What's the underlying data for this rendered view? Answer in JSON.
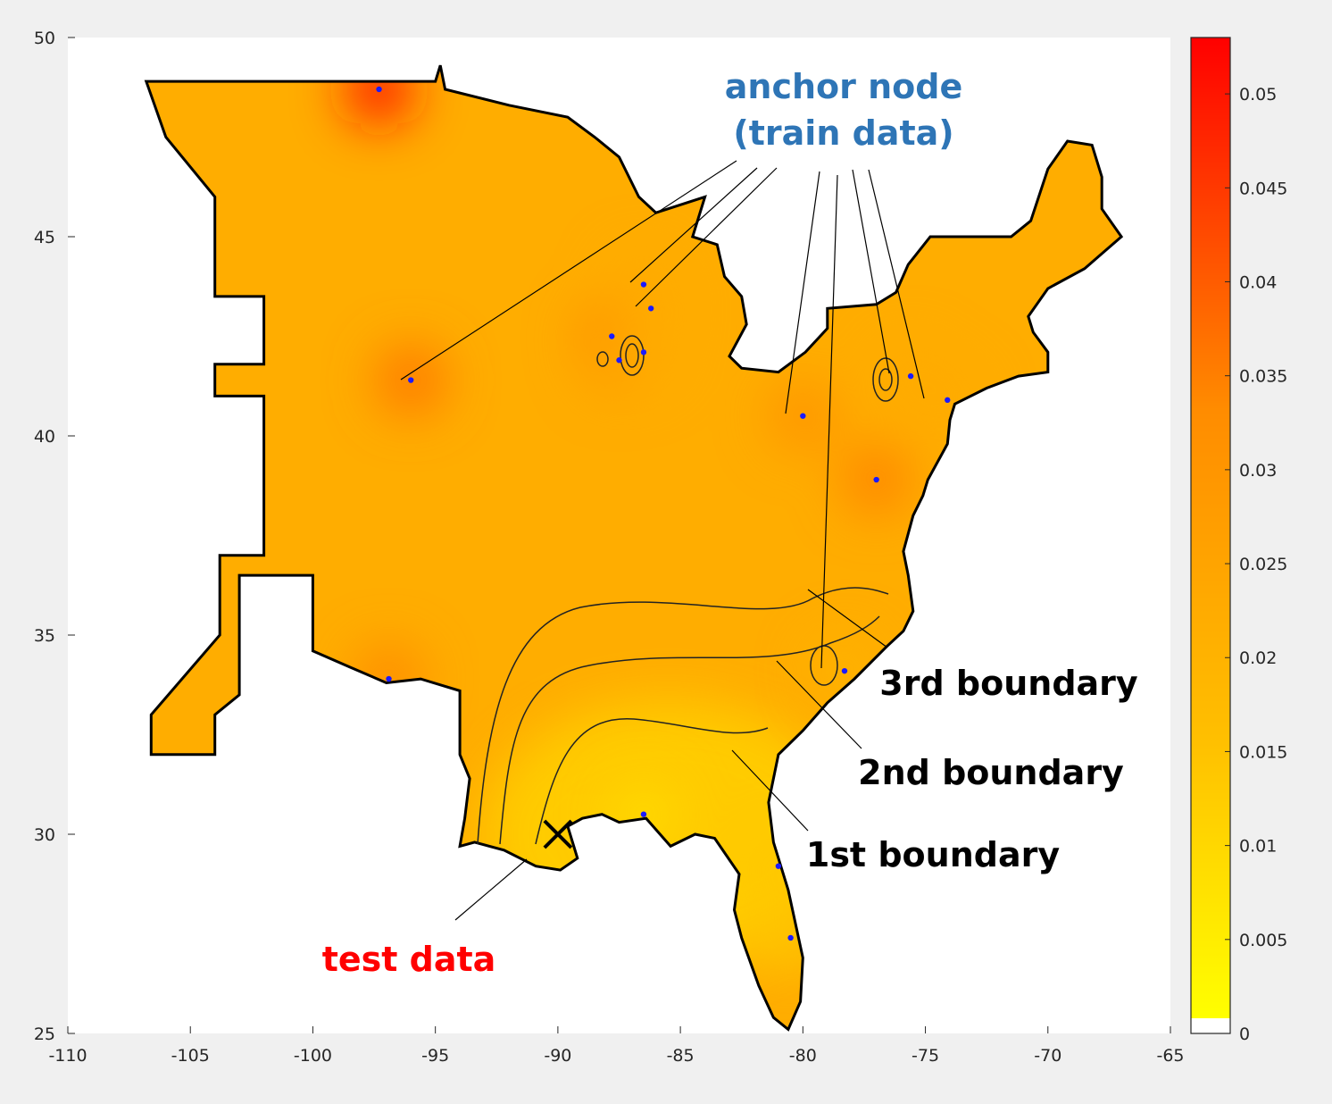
{
  "chart_data": {
    "type": "heatmap",
    "title": "",
    "xlabel": "",
    "ylabel": "",
    "xlim": [
      -110,
      -65
    ],
    "ylim": [
      25,
      50
    ],
    "x_ticks": [
      "-110",
      "-105",
      "-100",
      "-95",
      "-90",
      "-85",
      "-80",
      "-75",
      "-70",
      "-65"
    ],
    "y_ticks": [
      "25",
      "30",
      "35",
      "40",
      "45",
      "50"
    ],
    "colorbar": {
      "range": [
        0,
        0.053
      ],
      "ticks": [
        "0",
        "0.005",
        "0.01",
        "0.015",
        "0.02",
        "0.025",
        "0.03",
        "0.035",
        "0.04",
        "0.045",
        "0.05"
      ],
      "colors": [
        "#ffffff",
        "#ffff00",
        "#ffc000",
        "#ff8c00",
        "#ff0000"
      ]
    },
    "anchor_nodes": [
      {
        "lon": -97.3,
        "lat": 48.7,
        "value": 0.05
      },
      {
        "lon": -96.0,
        "lat": 41.4,
        "value": 0.036
      },
      {
        "lon": -87.8,
        "lat": 42.5,
        "value": 0.033
      },
      {
        "lon": -87.5,
        "lat": 41.9,
        "value": 0.028
      },
      {
        "lon": -86.5,
        "lat": 43.8,
        "value": 0.022
      },
      {
        "lon": -86.2,
        "lat": 43.2,
        "value": 0.022
      },
      {
        "lon": -86.5,
        "lat": 42.1,
        "value": 0.022
      },
      {
        "lon": -80.0,
        "lat": 40.5,
        "value": 0.03
      },
      {
        "lon": -75.6,
        "lat": 41.5,
        "value": 0.022
      },
      {
        "lon": -74.1,
        "lat": 40.9,
        "value": 0.022
      },
      {
        "lon": -77.0,
        "lat": 38.9,
        "value": 0.034
      },
      {
        "lon": -78.3,
        "lat": 34.1,
        "value": 0.02
      },
      {
        "lon": -96.9,
        "lat": 33.9,
        "value": 0.033
      },
      {
        "lon": -86.5,
        "lat": 30.5,
        "value": 0.009
      },
      {
        "lon": -81.0,
        "lat": 29.2,
        "value": 0.013
      },
      {
        "lon": -80.5,
        "lat": 27.4,
        "value": 0.014
      }
    ],
    "test_point": {
      "lon": -90.0,
      "lat": 30.0
    },
    "annotations": {
      "anchor_line1": "anchor node",
      "anchor_line2": "(train data)",
      "test": "test data",
      "boundary1": "1st boundary",
      "boundary2": "2nd boundary",
      "boundary3": "3rd boundary"
    },
    "annotation_colors": {
      "anchor": "#2e75b6",
      "test": "#ff0000",
      "boundary": "#000000"
    },
    "grid": false,
    "legend": "none"
  }
}
